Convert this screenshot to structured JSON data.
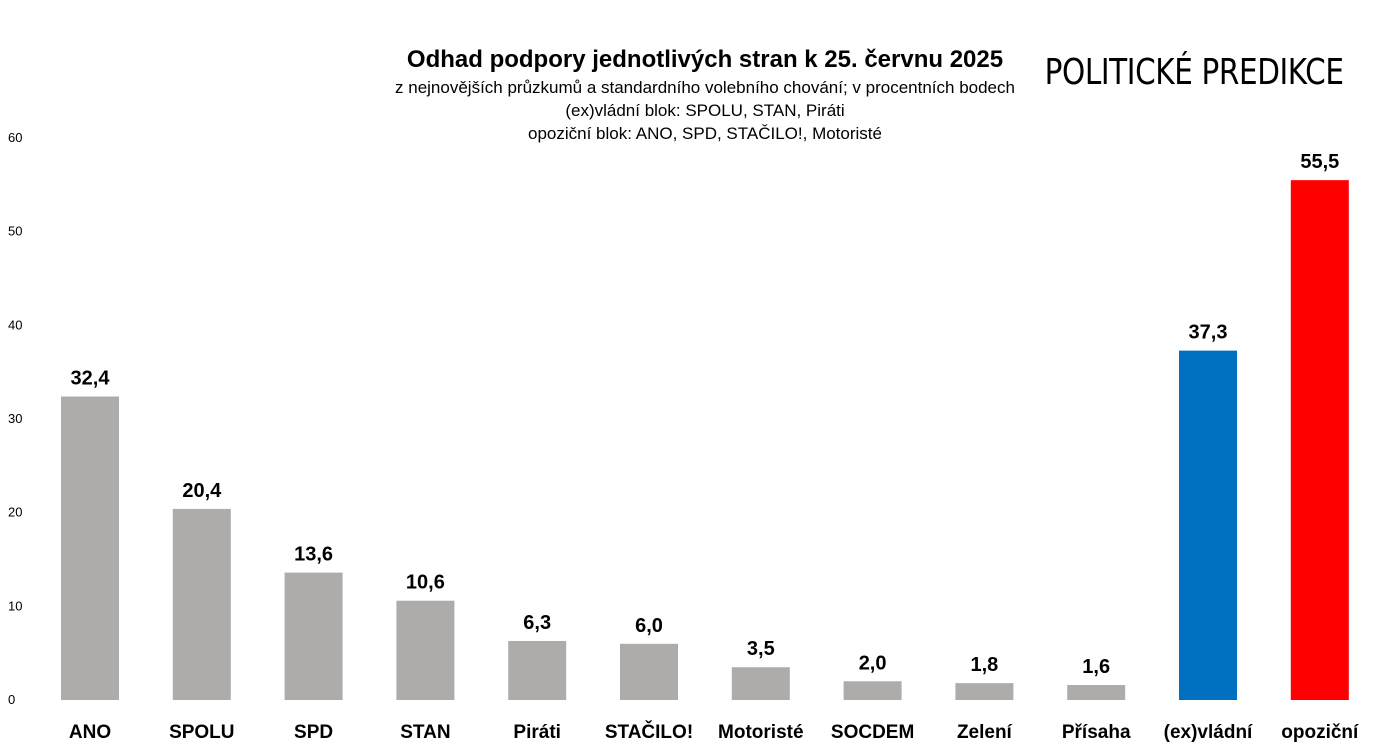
{
  "header": {
    "title": "Odhad podpory jednotlivých stran k 25. červnu 2025",
    "subtitle_lines": [
      "z nejnovějších průzkumů a standardního volebního chování; v procentních bodech",
      "(ex)vládní blok: SPOLU, STAN, Piráti",
      "opoziční blok: ANO, SPD, STAČILO!, Motoristé"
    ],
    "brand": "POLITICKÉ PREDIKCE"
  },
  "chart_data": {
    "type": "bar",
    "title": "Odhad podpory jednotlivých stran k 25. červnu 2025",
    "xlabel": "",
    "ylabel": "",
    "ylim": [
      0,
      60
    ],
    "yticks": [
      0,
      10,
      20,
      30,
      40,
      50,
      60
    ],
    "grid": false,
    "legend": "none",
    "categories": [
      "ANO",
      "SPOLU",
      "SPD",
      "STAN",
      "Piráti",
      "STAČILO!",
      "Motoristé",
      "SOCDEM",
      "Zelení",
      "Přísaha",
      "(ex)vládní",
      "opoziční"
    ],
    "values": [
      32.4,
      20.4,
      13.6,
      10.6,
      6.3,
      6.0,
      3.5,
      2.0,
      1.8,
      1.6,
      37.3,
      55.5
    ],
    "value_labels": [
      "32,4",
      "20,4",
      "13,6",
      "10,6",
      "6,3",
      "6,0",
      "3,5",
      "2,0",
      "1,8",
      "1,6",
      "37,3",
      "55,5"
    ],
    "colors": [
      "#aeabab",
      "#aeabab",
      "#aeabab",
      "#aeabab",
      "#aeabab",
      "#aeabab",
      "#aeabab",
      "#aeabab",
      "#aeabab",
      "#aeabab",
      "#0070c0",
      "#ff0000"
    ]
  }
}
